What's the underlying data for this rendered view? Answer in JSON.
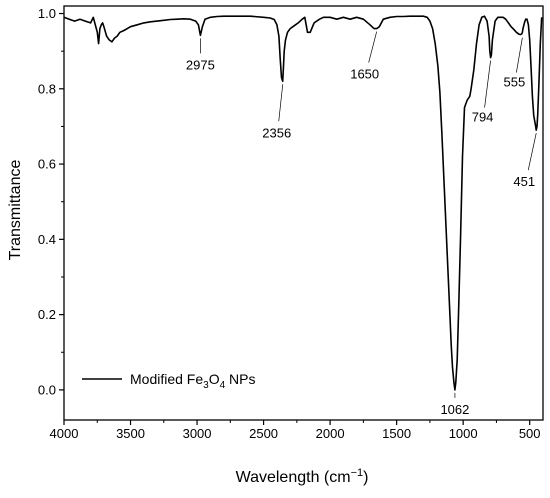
{
  "chart_data": {
    "type": "line",
    "xlabel": "Wavelength (cm",
    "xlabel_sup": "−1",
    "xlabel_close": ")",
    "ylabel": "Transmittance",
    "xlim": [
      4000,
      400
    ],
    "ylim": [
      -0.08,
      1.02
    ],
    "x_ticks": [
      "4000",
      "3500",
      "3000",
      "2500",
      "2000",
      "1500",
      "1000",
      "500"
    ],
    "x_tick_values": [
      4000,
      3500,
      3000,
      2500,
      2000,
      1500,
      1000,
      500
    ],
    "y_ticks": [
      "0.0",
      "0.2",
      "0.4",
      "0.6",
      "0.8",
      "1.0"
    ],
    "y_tick_values": [
      0.0,
      0.2,
      0.4,
      0.6,
      0.8,
      1.0
    ],
    "legend": {
      "position": "bottom-left",
      "prefix": "Modified Fe",
      "sub1": "3",
      "mid": "O",
      "sub2": "4",
      "suffix": " NPs"
    },
    "annotations": [
      {
        "label": "2975",
        "x": 2975,
        "y": 0.942
      },
      {
        "label": "2356",
        "x": 2356,
        "y": 0.82
      },
      {
        "label": "1650",
        "x": 1650,
        "y": 0.96
      },
      {
        "label": "1062",
        "x": 1062,
        "y": 0.0
      },
      {
        "label": "794",
        "x": 794,
        "y": 0.883
      },
      {
        "label": "555",
        "x": 555,
        "y": 0.944
      },
      {
        "label": "451",
        "x": 451,
        "y": 0.69
      }
    ],
    "series": [
      {
        "x": [
          4000,
          3960,
          3920,
          3880,
          3840,
          3800,
          3780,
          3765,
          3750,
          3740,
          3730,
          3720,
          3710,
          3700,
          3680,
          3660,
          3640,
          3620,
          3600,
          3580,
          3550,
          3500,
          3450,
          3400,
          3350,
          3300,
          3250,
          3200,
          3150,
          3100,
          3050,
          3010,
          2990,
          2975,
          2960,
          2940,
          2900,
          2850,
          2800,
          2700,
          2600,
          2500,
          2450,
          2420,
          2400,
          2385,
          2375,
          2365,
          2356,
          2350,
          2345,
          2335,
          2320,
          2300,
          2280,
          2260,
          2240,
          2210,
          2190,
          2170,
          2150,
          2120,
          2080,
          2050,
          2000,
          1950,
          1900,
          1850,
          1800,
          1750,
          1700,
          1670,
          1650,
          1630,
          1600,
          1550,
          1500,
          1450,
          1400,
          1350,
          1300,
          1270,
          1250,
          1230,
          1210,
          1190,
          1175,
          1160,
          1145,
          1130,
          1115,
          1100,
          1090,
          1080,
          1070,
          1062,
          1055,
          1045,
          1035,
          1020,
          1005,
          990,
          980,
          970,
          960,
          950,
          940,
          920,
          900,
          880,
          860,
          840,
          820,
          805,
          800,
          794,
          788,
          780,
          760,
          740,
          720,
          700,
          680,
          660,
          640,
          620,
          600,
          580,
          570,
          560,
          555,
          550,
          540,
          530,
          520,
          510,
          500,
          490,
          480,
          470,
          460,
          455,
          451,
          445,
          440,
          430,
          420,
          410
        ],
        "y": [
          0.99,
          0.985,
          0.98,
          0.985,
          0.98,
          0.975,
          0.99,
          0.97,
          0.95,
          0.92,
          0.96,
          0.97,
          0.975,
          0.965,
          0.94,
          0.93,
          0.925,
          0.935,
          0.94,
          0.95,
          0.955,
          0.965,
          0.97,
          0.975,
          0.978,
          0.98,
          0.982,
          0.984,
          0.985,
          0.986,
          0.985,
          0.98,
          0.97,
          0.942,
          0.965,
          0.985,
          0.99,
          0.992,
          0.993,
          0.993,
          0.993,
          0.99,
          0.988,
          0.984,
          0.97,
          0.94,
          0.88,
          0.83,
          0.82,
          0.86,
          0.9,
          0.93,
          0.95,
          0.96,
          0.965,
          0.97,
          0.975,
          0.985,
          0.99,
          0.95,
          0.95,
          0.975,
          0.985,
          0.99,
          0.99,
          0.985,
          0.99,
          0.985,
          0.99,
          0.985,
          0.97,
          0.96,
          0.96,
          0.965,
          0.985,
          0.99,
          0.992,
          0.992,
          0.993,
          0.993,
          0.993,
          0.99,
          0.98,
          0.96,
          0.92,
          0.86,
          0.79,
          0.68,
          0.56,
          0.44,
          0.32,
          0.2,
          0.12,
          0.06,
          0.02,
          0.0,
          0.02,
          0.08,
          0.2,
          0.4,
          0.62,
          0.75,
          0.76,
          0.77,
          0.775,
          0.78,
          0.8,
          0.85,
          0.92,
          0.97,
          0.99,
          0.993,
          0.98,
          0.94,
          0.9,
          0.883,
          0.89,
          0.93,
          0.98,
          0.99,
          0.99,
          0.99,
          0.985,
          0.975,
          0.965,
          0.958,
          0.95,
          0.945,
          0.944,
          0.946,
          0.95,
          0.96,
          0.975,
          0.985,
          0.985,
          0.97,
          0.93,
          0.86,
          0.78,
          0.73,
          0.71,
          0.7,
          0.69,
          0.7,
          0.73,
          0.82,
          0.92,
          0.99
        ]
      }
    ]
  }
}
